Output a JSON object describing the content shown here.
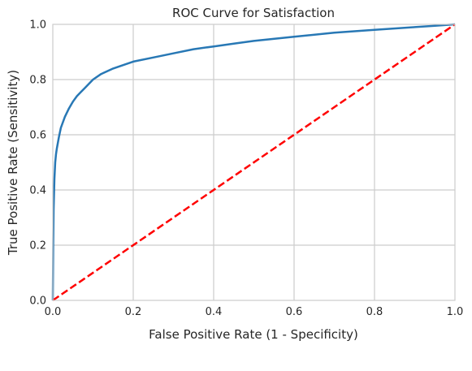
{
  "chart_data": {
    "type": "line",
    "title": "ROC Curve for Satisfaction",
    "xlabel": "False Positive Rate (1 - Specificity)",
    "ylabel": "True Positive Rate (Sensitivity)",
    "xlim": [
      0.0,
      1.0
    ],
    "ylim": [
      0.0,
      1.0
    ],
    "xticks": [
      "0.0",
      "0.2",
      "0.4",
      "0.6",
      "0.8",
      "1.0"
    ],
    "yticks": [
      "0.0",
      "0.2",
      "0.4",
      "0.6",
      "0.8",
      "1.0"
    ],
    "grid": true,
    "series": [
      {
        "color": "#2878b5",
        "style": "solid",
        "x": [
          0.0,
          0.001,
          0.002,
          0.004,
          0.006,
          0.008,
          0.01,
          0.015,
          0.02,
          0.03,
          0.04,
          0.05,
          0.06,
          0.07,
          0.08,
          0.1,
          0.12,
          0.15,
          0.18,
          0.2,
          0.25,
          0.3,
          0.35,
          0.4,
          0.45,
          0.5,
          0.6,
          0.7,
          0.8,
          0.9,
          0.95,
          1.0
        ],
        "y": [
          0.0,
          0.2,
          0.33,
          0.44,
          0.5,
          0.53,
          0.55,
          0.59,
          0.625,
          0.665,
          0.695,
          0.72,
          0.74,
          0.755,
          0.77,
          0.8,
          0.82,
          0.84,
          0.855,
          0.865,
          0.88,
          0.895,
          0.91,
          0.92,
          0.93,
          0.94,
          0.955,
          0.97,
          0.98,
          0.99,
          0.995,
          1.0
        ]
      },
      {
        "color": "#ff0000",
        "style": "dashed",
        "x": [
          0.0,
          1.0
        ],
        "y": [
          0.0,
          1.0
        ]
      }
    ]
  }
}
